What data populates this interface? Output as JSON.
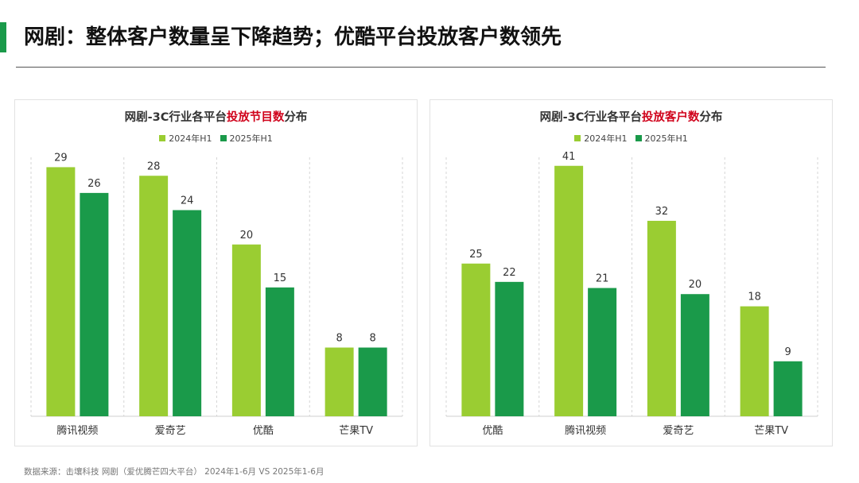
{
  "colors": {
    "accent": "#1a9a4a",
    "series_2024": "#9acd32",
    "series_2025": "#1a9a4a",
    "highlight": "#d0021b",
    "grid": "#d6d6d6"
  },
  "page": {
    "title": "网剧：整体客户数量呈下降趋势；优酷平台投放客户数领先",
    "source": "数据来源：击壤科技 网剧（爱优腾芒四大平台） 2024年1-6月 VS 2025年1-6月"
  },
  "charts": [
    {
      "title_prefix": "网剧-3C行业各平台",
      "title_highlight": "投放节目数",
      "title_suffix": "分布"
    },
    {
      "title_prefix": "网剧-3C行业各平台",
      "title_highlight": "投放客户数",
      "title_suffix": "分布"
    }
  ],
  "chart_data": [
    {
      "type": "bar",
      "title": "网剧-3C行业各平台投放节目数分布",
      "categories": [
        "腾讯视频",
        "爱奇艺",
        "优酷",
        "芒果TV"
      ],
      "series": [
        {
          "name": "2024年H1",
          "values": [
            29,
            28,
            20,
            8
          ]
        },
        {
          "name": "2025年H1",
          "values": [
            26,
            24,
            15,
            8
          ]
        }
      ],
      "ylim": [
        0,
        32
      ],
      "legend_position": "top-center",
      "grid": false
    },
    {
      "type": "bar",
      "title": "网剧-3C行业各平台投放客户数分布",
      "categories": [
        "优酷",
        "腾讯视频",
        "爱奇艺",
        "芒果TV"
      ],
      "series": [
        {
          "name": "2024年H1",
          "values": [
            25,
            41,
            32,
            18
          ]
        },
        {
          "name": "2025年H1",
          "values": [
            22,
            21,
            20,
            9
          ]
        }
      ],
      "ylim": [
        0,
        45
      ],
      "legend_position": "top-center",
      "grid": false
    }
  ]
}
